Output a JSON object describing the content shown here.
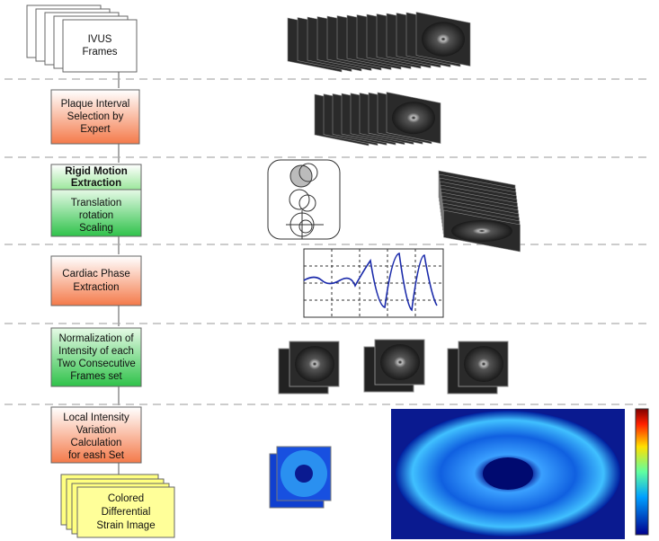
{
  "nodes": [
    {
      "lines": [
        "IVUS",
        "Frames"
      ]
    },
    {
      "lines": [
        "Plaque Interval",
        "Selection by",
        "Expert"
      ]
    },
    {
      "lines": [
        "Rigid Motion",
        "Extraction"
      ]
    },
    {
      "lines": [
        "Translation",
        "rotation",
        "Scaling"
      ]
    },
    {
      "lines": [
        "Cardiac Phase",
        "Extraction"
      ]
    },
    {
      "lines": [
        "Normalization of",
        "Intensity of each",
        "Two Consecutive",
        "Frames set"
      ]
    },
    {
      "lines": [
        "Local Intensity",
        "Variation",
        "Calculation",
        "for eash Set"
      ]
    },
    {
      "lines": [
        "Colored",
        "Differential",
        "Strain Image"
      ]
    }
  ]
}
